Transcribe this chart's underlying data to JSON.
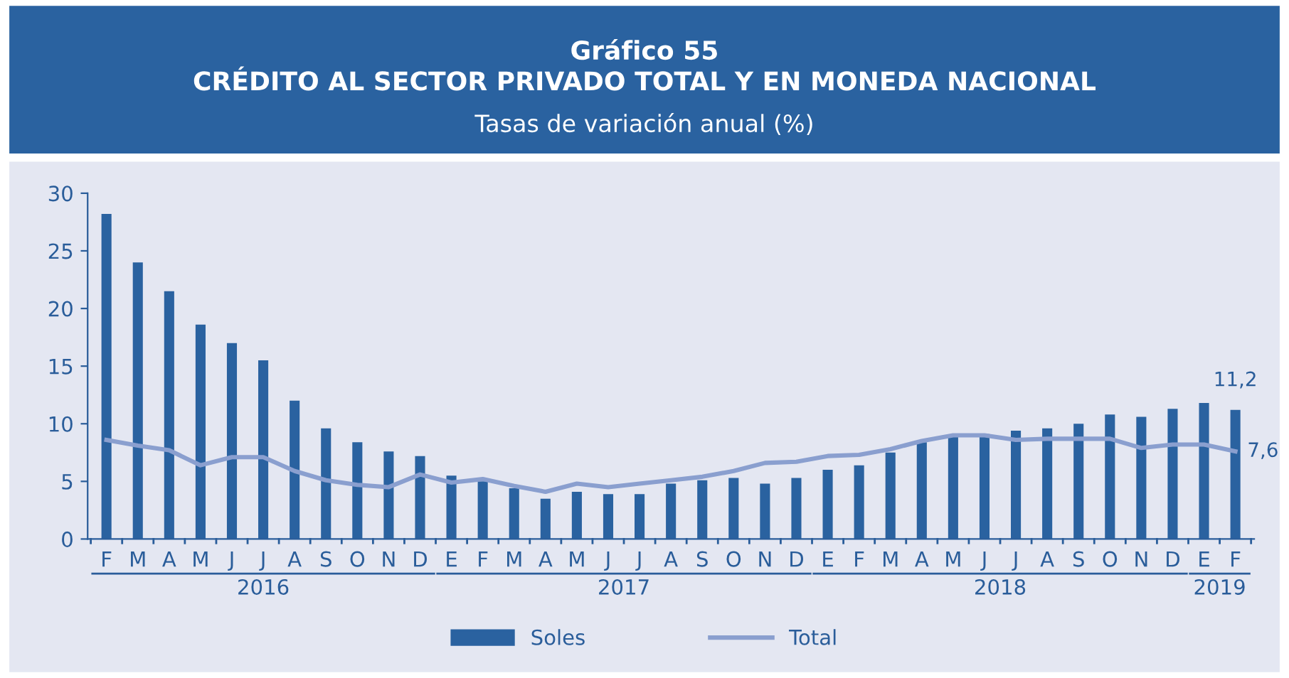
{
  "chart_data": {
    "type": "bar",
    "title": "Gráfico 55\nCRÉDITO AL SECTOR PRIVADO TOTAL Y EN MONEDA NACIONAL",
    "subtitle": "Tasas de variación anual (%)",
    "categories": [
      "F",
      "M",
      "A",
      "M",
      "J",
      "J",
      "A",
      "S",
      "O",
      "N",
      "D",
      "E",
      "F",
      "M",
      "A",
      "M",
      "J",
      "J",
      "A",
      "S",
      "O",
      "N",
      "D",
      "E",
      "F",
      "M",
      "A",
      "M",
      "J",
      "J",
      "A",
      "S",
      "O",
      "N",
      "D",
      "E",
      "F"
    ],
    "annotations": [
      "2016",
      "2017",
      "2018",
      "2019"
    ],
    "series": [
      {
        "name": "Soles",
        "color": "#2a62a0",
        "values": [
          28.2,
          24.0,
          21.5,
          18.6,
          17.0,
          15.5,
          12.0,
          9.6,
          8.4,
          7.6,
          7.2,
          5.5,
          5.0,
          4.4,
          3.5,
          4.1,
          3.9,
          3.9,
          4.8,
          5.1,
          5.3,
          4.8,
          5.3,
          6.0,
          6.4,
          7.5,
          8.4,
          8.9,
          9.1,
          9.4,
          9.6,
          10.0,
          10.8,
          10.6,
          11.3,
          11.8,
          11.2
        ],
        "value_labels": [
          null,
          null,
          null,
          null,
          null,
          null,
          null,
          null,
          null,
          null,
          null,
          null,
          null,
          null,
          null,
          null,
          null,
          null,
          null,
          null,
          null,
          null,
          null,
          null,
          null,
          null,
          null,
          null,
          null,
          null,
          null,
          null,
          null,
          null,
          null,
          null,
          "11,2"
        ]
      },
      {
        "name": "Total",
        "type": "line",
        "color": "#8a9fcf",
        "values": [
          8.6,
          8.1,
          7.7,
          6.4,
          7.1,
          7.1,
          5.9,
          5.1,
          4.7,
          4.5,
          5.6,
          4.9,
          5.2,
          4.6,
          4.1,
          4.8,
          4.5,
          4.8,
          5.1,
          5.4,
          5.9,
          6.6,
          6.7,
          7.2,
          7.3,
          7.8,
          8.5,
          9.0,
          9.0,
          8.6,
          8.7,
          8.7,
          8.7,
          7.9,
          8.2,
          8.2,
          7.6
        ],
        "value_labels": [
          null,
          null,
          null,
          null,
          null,
          null,
          null,
          null,
          null,
          null,
          null,
          null,
          null,
          null,
          null,
          null,
          null,
          null,
          null,
          null,
          null,
          null,
          null,
          null,
          null,
          null,
          null,
          null,
          null,
          null,
          null,
          null,
          null,
          null,
          null,
          null,
          "7,6"
        ]
      }
    ],
    "ylim": [
      0,
      30
    ],
    "yticks": [
      0,
      5,
      10,
      15,
      20,
      25,
      30
    ],
    "grid": false,
    "legend": "bottom",
    "marker": "none",
    "line_style": "solid"
  }
}
